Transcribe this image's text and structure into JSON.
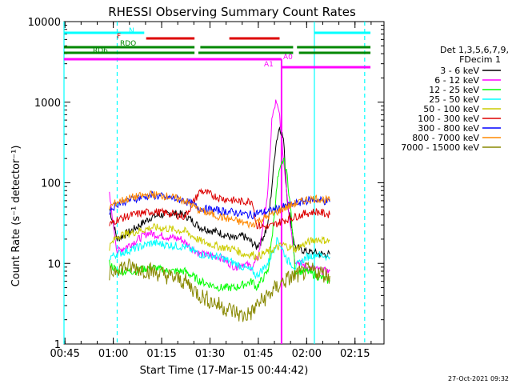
{
  "chart_data": {
    "type": "line",
    "title": "RHESSI Observing Summary Count Rates",
    "xlabel": "Start Time (17-Mar-15 00:44:42)",
    "ylabel": "Count Rate (s⁻¹ detector⁻¹)",
    "y_scale": "log",
    "ylim": [
      1,
      10000
    ],
    "xlim": [
      "00:44:42",
      "02:24:00"
    ],
    "x_ticks": [
      "00:45",
      "01:00",
      "01:15",
      "01:30",
      "01:45",
      "02:00",
      "02:15"
    ],
    "y_ticks": [
      "1",
      "10",
      "100",
      "1000",
      "10000"
    ],
    "footer_date": "27-Oct-2021 09:32",
    "legend": {
      "header1": "Det 1,3,5,6,7,9,",
      "header2": "FDecim 1",
      "placement": "right",
      "entries": [
        {
          "label": "3 - 6 keV",
          "color": "#000000"
        },
        {
          "label": "6 - 12 keV",
          "color": "#ff00ff"
        },
        {
          "label": "12 - 25 keV",
          "color": "#00ff00"
        },
        {
          "label": "25 - 50 keV",
          "color": "#00ffff"
        },
        {
          "label": "50 - 100 keV",
          "color": "#cccc00"
        },
        {
          "label": "100 - 300 keV",
          "color": "#dd0000"
        },
        {
          "label": "300 - 800 keV",
          "color": "#0000ff"
        },
        {
          "label": "800 - 7000 keV",
          "color": "#ff8800"
        },
        {
          "label": "7000 - 15000 keV",
          "color": "#888800"
        }
      ]
    },
    "flag_labels": {
      "N": "N",
      "F": "F",
      "RDO": "RDO",
      "RD6": "RD6",
      "A0": "A0",
      "A1": "A1"
    },
    "series": [
      {
        "name": "3 - 6 keV",
        "color": "#000000",
        "pts": [
          [
            0.98,
            48
          ],
          [
            1.02,
            20
          ],
          [
            1.1,
            26
          ],
          [
            1.2,
            38
          ],
          [
            1.3,
            42
          ],
          [
            1.37,
            40
          ],
          [
            1.45,
            28
          ],
          [
            1.55,
            24
          ],
          [
            1.63,
            20
          ],
          [
            1.67,
            22
          ],
          [
            1.72,
            18
          ],
          [
            1.74,
            16
          ],
          [
            1.77,
            20
          ],
          [
            1.8,
            30
          ],
          [
            1.82,
            90
          ],
          [
            1.84,
            300
          ],
          [
            1.86,
            500
          ],
          [
            1.88,
            350
          ],
          [
            1.9,
            60
          ],
          [
            1.94,
            16
          ],
          [
            2.0,
            14
          ],
          [
            2.08,
            13
          ],
          [
            2.12,
            13
          ]
        ]
      },
      {
        "name": "6 - 12 keV",
        "color": "#ff00ff",
        "pts": [
          [
            0.98,
            70
          ],
          [
            1.02,
            14
          ],
          [
            1.1,
            18
          ],
          [
            1.18,
            24
          ],
          [
            1.25,
            22
          ],
          [
            1.35,
            20
          ],
          [
            1.4,
            16
          ],
          [
            1.45,
            13
          ],
          [
            1.55,
            12
          ],
          [
            1.63,
            9
          ],
          [
            1.67,
            10
          ],
          [
            1.72,
            9
          ],
          [
            1.75,
            12
          ],
          [
            1.8,
            80
          ],
          [
            1.82,
            600
          ],
          [
            1.84,
            1000
          ],
          [
            1.86,
            700
          ],
          [
            1.88,
            200
          ],
          [
            1.91,
            40
          ],
          [
            1.94,
            11
          ],
          [
            2.0,
            9
          ],
          [
            2.08,
            8
          ],
          [
            2.12,
            8
          ]
        ]
      },
      {
        "name": "12 - 25 keV",
        "color": "#00ff00",
        "pts": [
          [
            0.98,
            10
          ],
          [
            1.02,
            8
          ],
          [
            1.1,
            8
          ],
          [
            1.2,
            9
          ],
          [
            1.28,
            8
          ],
          [
            1.37,
            8
          ],
          [
            1.45,
            6
          ],
          [
            1.55,
            5
          ],
          [
            1.63,
            5
          ],
          [
            1.72,
            6
          ],
          [
            1.74,
            5
          ],
          [
            1.8,
            8
          ],
          [
            1.82,
            20
          ],
          [
            1.85,
            110
          ],
          [
            1.88,
            200
          ],
          [
            1.9,
            120
          ],
          [
            1.92,
            40
          ],
          [
            1.94,
            8
          ],
          [
            2.0,
            8
          ],
          [
            2.05,
            7
          ],
          [
            2.12,
            6
          ]
        ]
      },
      {
        "name": "25 - 50 keV",
        "color": "#00ffff",
        "pts": [
          [
            0.98,
            12
          ],
          [
            1.02,
            13
          ],
          [
            1.1,
            15
          ],
          [
            1.2,
            18
          ],
          [
            1.28,
            17
          ],
          [
            1.37,
            16
          ],
          [
            1.45,
            13
          ],
          [
            1.55,
            12
          ],
          [
            1.63,
            10
          ],
          [
            1.67,
            9
          ],
          [
            1.72,
            8
          ],
          [
            1.74,
            7
          ],
          [
            1.8,
            10
          ],
          [
            1.85,
            20
          ],
          [
            1.9,
            11
          ],
          [
            1.94,
            9
          ],
          [
            2.0,
            12
          ],
          [
            2.05,
            13
          ],
          [
            2.12,
            12
          ]
        ]
      },
      {
        "name": "50 - 100 keV",
        "color": "#cccc00",
        "pts": [
          [
            0.98,
            16
          ],
          [
            1.02,
            22
          ],
          [
            1.1,
            24
          ],
          [
            1.2,
            28
          ],
          [
            1.28,
            27
          ],
          [
            1.37,
            25
          ],
          [
            1.45,
            19
          ],
          [
            1.55,
            16
          ],
          [
            1.63,
            15
          ],
          [
            1.67,
            13
          ],
          [
            1.72,
            13
          ],
          [
            1.74,
            12
          ],
          [
            1.8,
            14
          ],
          [
            1.88,
            17
          ],
          [
            1.94,
            15
          ],
          [
            2.0,
            18
          ],
          [
            2.05,
            20
          ],
          [
            2.12,
            19
          ]
        ]
      },
      {
        "name": "100 - 300 keV",
        "color": "#dd0000",
        "pts": [
          [
            0.98,
            30
          ],
          [
            1.02,
            35
          ],
          [
            1.1,
            40
          ],
          [
            1.2,
            44
          ],
          [
            1.28,
            42
          ],
          [
            1.37,
            38
          ],
          [
            1.45,
            80
          ],
          [
            1.55,
            65
          ],
          [
            1.63,
            60
          ],
          [
            1.67,
            58
          ],
          [
            1.72,
            60
          ],
          [
            1.74,
            30
          ],
          [
            1.8,
            28
          ],
          [
            1.88,
            34
          ],
          [
            1.94,
            38
          ],
          [
            2.0,
            42
          ],
          [
            2.05,
            44
          ],
          [
            2.12,
            40
          ]
        ]
      },
      {
        "name": "300 - 800 keV",
        "color": "#0000ff",
        "pts": [
          [
            0.98,
            45
          ],
          [
            1.02,
            55
          ],
          [
            1.1,
            63
          ],
          [
            1.2,
            70
          ],
          [
            1.28,
            66
          ],
          [
            1.37,
            60
          ],
          [
            1.45,
            48
          ],
          [
            1.55,
            45
          ],
          [
            1.63,
            43
          ],
          [
            1.67,
            41
          ],
          [
            1.72,
            40
          ],
          [
            1.74,
            42
          ],
          [
            1.8,
            44
          ],
          [
            1.88,
            50
          ],
          [
            1.94,
            55
          ],
          [
            2.0,
            60
          ],
          [
            2.05,
            62
          ],
          [
            2.12,
            58
          ]
        ]
      },
      {
        "name": "800 - 7000 keV",
        "color": "#ff8800",
        "pts": [
          [
            0.98,
            50
          ],
          [
            1.02,
            58
          ],
          [
            1.1,
            66
          ],
          [
            1.2,
            72
          ],
          [
            1.28,
            68
          ],
          [
            1.37,
            60
          ],
          [
            1.45,
            45
          ],
          [
            1.55,
            38
          ],
          [
            1.63,
            34
          ],
          [
            1.67,
            32
          ],
          [
            1.72,
            30
          ],
          [
            1.74,
            33
          ],
          [
            1.8,
            38
          ],
          [
            1.88,
            48
          ],
          [
            1.94,
            55
          ],
          [
            2.0,
            62
          ],
          [
            2.05,
            64
          ],
          [
            2.12,
            60
          ]
        ]
      },
      {
        "name": "7000 - 15000 keV",
        "color": "#888800",
        "pts": [
          [
            0.98,
            7
          ],
          [
            1.02,
            9
          ],
          [
            1.1,
            9
          ],
          [
            1.2,
            8
          ],
          [
            1.28,
            7
          ],
          [
            1.37,
            6
          ],
          [
            1.45,
            4
          ],
          [
            1.55,
            3
          ],
          [
            1.63,
            2.5
          ],
          [
            1.67,
            2.2
          ],
          [
            1.72,
            2.5
          ],
          [
            1.74,
            3
          ],
          [
            1.8,
            4
          ],
          [
            1.88,
            6
          ],
          [
            1.94,
            7
          ],
          [
            2.0,
            8
          ],
          [
            2.05,
            8
          ],
          [
            2.12,
            7
          ]
        ]
      }
    ],
    "flag_bars": [
      {
        "label": "N",
        "color": "#00ffff",
        "segments": [
          [
            0.745,
            1.16
          ],
          [
            2.04,
            2.33
          ]
        ]
      },
      {
        "label": "F",
        "color": "#dd0000",
        "segments": [
          [
            1.17,
            1.42
          ],
          [
            1.6,
            1.86
          ]
        ]
      },
      {
        "label": "RDO",
        "color": "#008800",
        "segments": [
          [
            0.745,
            1.42
          ],
          [
            1.45,
            1.93
          ],
          [
            1.95,
            2.33
          ]
        ]
      },
      {
        "label": "RD6",
        "color": "#008800",
        "segments": [
          [
            0.745,
            1.42
          ],
          [
            1.44,
            1.93
          ],
          [
            1.96,
            2.33
          ]
        ]
      },
      {
        "label": "A1",
        "color": "#ff00ff",
        "segments": [
          [
            0.745,
            1.87
          ]
        ]
      },
      {
        "label": "A0",
        "color": "#ff00ff",
        "segments": [
          [
            1.87,
            2.33
          ]
        ]
      }
    ],
    "vertical_markers": [
      {
        "x": 0.745,
        "color": "#00ffff",
        "style": "solid"
      },
      {
        "x": 1.02,
        "color": "#00ffff",
        "style": "dashed"
      },
      {
        "x": 2.04,
        "color": "#00ffff",
        "style": "solid"
      },
      {
        "x": 2.3,
        "color": "#00ffff",
        "style": "dashed"
      }
    ]
  }
}
